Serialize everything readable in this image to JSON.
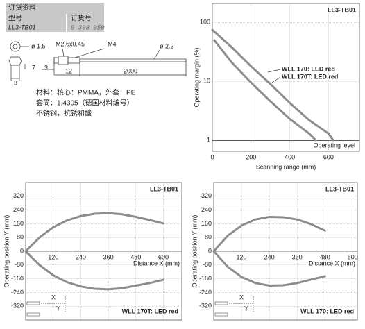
{
  "order": {
    "heading": "订货资料",
    "type_label": "型号",
    "number_label": "订货号",
    "type_value": "LL3-TB01",
    "number_value": "5 308 050"
  },
  "drawing": {
    "dia_core": "ø 1.5",
    "thread": "M2.6x0.45",
    "nut": "M4",
    "dia_sheath": "ø 2.2",
    "dim_7": "7",
    "dim_3a": "3",
    "dim_12": "12",
    "dim_2000": "2000",
    "dim_3b": "3"
  },
  "material": [
    "材料：核心：PMMA，外套：PE",
    "套筒：1.4305（德国材料编号）",
    "不锈钢，抗锈和酸"
  ],
  "chart_data": [
    {
      "type": "line",
      "title": "LL3-TB01",
      "y_label": "Operating margin (%)",
      "x_label": "Scanning range (mm)",
      "log_y": true,
      "grid": true,
      "xlim": [
        0,
        760
      ],
      "ylim": [
        0.65,
        210
      ],
      "xticks": [
        0,
        200,
        400,
        600
      ],
      "yticks": [
        1,
        10,
        100
      ],
      "series": [
        {
          "name": "WLL 170: LED red",
          "color": "#8c8c8c",
          "x": [
            0,
            100,
            200,
            300,
            400,
            500,
            600,
            625
          ],
          "values": [
            75,
            38,
            18,
            9,
            4.3,
            2.2,
            1.3,
            1
          ]
        },
        {
          "name": "WLL 170T: LED red",
          "color": "#8c8c8c",
          "x": [
            10,
            100,
            200,
            300,
            400,
            500,
            535
          ],
          "values": [
            50,
            21,
            9.5,
            4.6,
            2.3,
            1.3,
            1
          ]
        }
      ],
      "reference_line": {
        "value": 1,
        "label": "Operating level"
      }
    },
    {
      "type": "line",
      "title": "LL3-TB01",
      "y_label": "Operating position Y (mm)",
      "x_label": "Distance X (mm)",
      "annotation": "WLL 170T: LED red",
      "grid": true,
      "xlim": [
        0,
        680
      ],
      "ylim": [
        -400,
        400
      ],
      "xticks": [
        120,
        240,
        360,
        480,
        600
      ],
      "yticks": [
        320,
        240,
        160,
        80,
        0,
        -80,
        -160,
        -240,
        -320
      ],
      "inset_labels": [
        "X",
        "Y"
      ],
      "series": [
        {
          "color": "#8c8c8c",
          "x": [
            0,
            60,
            120,
            180,
            240,
            300,
            360,
            420,
            480,
            540,
            600
          ],
          "values": [
            0,
            80,
            140,
            180,
            205,
            218,
            222,
            215,
            200,
            182,
            162
          ]
        },
        {
          "color": "#8c8c8c",
          "x": [
            0,
            60,
            120,
            180,
            240,
            300,
            360,
            420,
            480,
            540,
            600
          ],
          "values": [
            0,
            -80,
            -140,
            -180,
            -205,
            -218,
            -222,
            -215,
            -200,
            -185,
            -166
          ]
        }
      ]
    },
    {
      "type": "line",
      "title": "LL3-TB01",
      "y_label": "Operating position Y (mm)",
      "x_label": "Distance X (mm)",
      "annotation": "WLL 170: LED red",
      "grid": true,
      "xlim": [
        0,
        620
      ],
      "ylim": [
        -400,
        400
      ],
      "xticks": [
        120,
        240,
        360,
        480,
        600
      ],
      "yticks": [
        320,
        240,
        160,
        80,
        0,
        -80,
        -160,
        -240,
        -320
      ],
      "inset_labels": [
        "X",
        "Y"
      ],
      "series": [
        {
          "color": "#8c8c8c",
          "x": [
            0,
            60,
            120,
            180,
            240,
            300,
            360,
            420,
            480
          ],
          "values": [
            0,
            90,
            150,
            185,
            200,
            198,
            185,
            158,
            120
          ]
        },
        {
          "color": "#8c8c8c",
          "x": [
            0,
            60,
            120,
            180,
            240,
            300,
            360,
            420,
            480
          ],
          "values": [
            0,
            -90,
            -150,
            -185,
            -200,
            -198,
            -185,
            -165,
            -145
          ]
        }
      ]
    }
  ]
}
